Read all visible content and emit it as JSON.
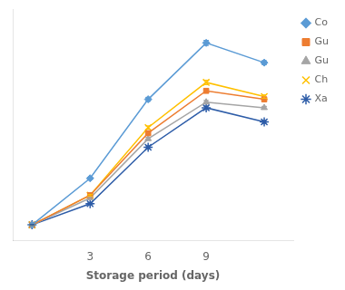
{
  "chart_data": {
    "type": "line",
    "xlabel": "Storage period (days)",
    "x": [
      0,
      3,
      6,
      9,
      12
    ],
    "series": [
      {
        "name": "Co",
        "color": "#5b9bd5",
        "marker": "diamond",
        "values": [
          5.5,
          22,
          50,
          70,
          63
        ],
        "yerr": [
          0.2,
          0.4,
          0.7,
          0.9,
          0.7
        ]
      },
      {
        "name": "Gu",
        "color": "#ed7d31",
        "marker": "square",
        "values": [
          5.5,
          16,
          38,
          53,
          50
        ],
        "yerr": [
          0.2,
          0.3,
          0.6,
          0.7,
          0.6
        ]
      },
      {
        "name": "Gu",
        "color": "#a5a5a5",
        "marker": "triangle",
        "values": [
          5.5,
          15,
          36,
          49,
          47
        ],
        "yerr": [
          0.2,
          0.3,
          0.5,
          0.6,
          0.5
        ]
      },
      {
        "name": "Ch",
        "color": "#ffc000",
        "marker": "x",
        "values": [
          5.5,
          16,
          40,
          56,
          51
        ],
        "yerr": [
          0.2,
          0.3,
          0.6,
          0.8,
          0.6
        ]
      },
      {
        "name": "Xa",
        "color": "#2e5da8",
        "marker": "star",
        "values": [
          5.5,
          13,
          33,
          47,
          42
        ],
        "yerr": [
          0.2,
          0.3,
          0.5,
          0.6,
          0.5
        ]
      }
    ],
    "xlim": [
      -1,
      13.5
    ],
    "xticks": [
      {
        "value": 0,
        "label": null
      },
      3,
      6,
      9
    ],
    "ylim": [
      0,
      82
    ],
    "yticks": [],
    "grid": false,
    "legend": "upper right",
    "tick_labels": "x"
  }
}
